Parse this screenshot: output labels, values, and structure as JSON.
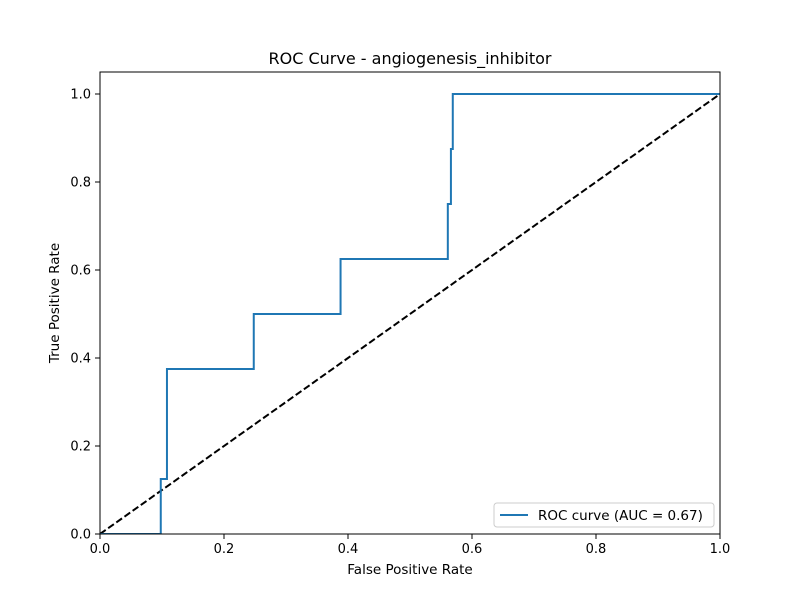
{
  "chart_data": {
    "type": "line",
    "title": "ROC Curve - angiogenesis_inhibitor",
    "xlabel": "False Positive Rate",
    "ylabel": "True Positive Rate",
    "xlim": [
      0.0,
      1.0
    ],
    "ylim": [
      0.0,
      1.05
    ],
    "x_ticks": [
      "0.0",
      "0.2",
      "0.4",
      "0.6",
      "0.8",
      "1.0"
    ],
    "y_ticks": [
      "0.0",
      "0.2",
      "0.4",
      "0.6",
      "0.8",
      "1.0"
    ],
    "grid": false,
    "legend_position": "lower right",
    "series": [
      {
        "name": "ROC curve (AUC = 0.67)",
        "color": "#1f77b4",
        "style": "solid",
        "x": [
          0.0,
          0.098,
          0.098,
          0.108,
          0.108,
          0.248,
          0.248,
          0.388,
          0.388,
          0.561,
          0.561,
          0.566,
          0.566,
          0.569,
          0.569,
          1.0
        ],
        "y": [
          0.0,
          0.0,
          0.125,
          0.125,
          0.375,
          0.375,
          0.5,
          0.5,
          0.625,
          0.625,
          0.75,
          0.75,
          0.875,
          0.875,
          1.0,
          1.0
        ]
      },
      {
        "name": "",
        "color": "#000000",
        "style": "dashed",
        "x": [
          0.0,
          1.0
        ],
        "y": [
          0.0,
          1.0
        ]
      }
    ]
  }
}
